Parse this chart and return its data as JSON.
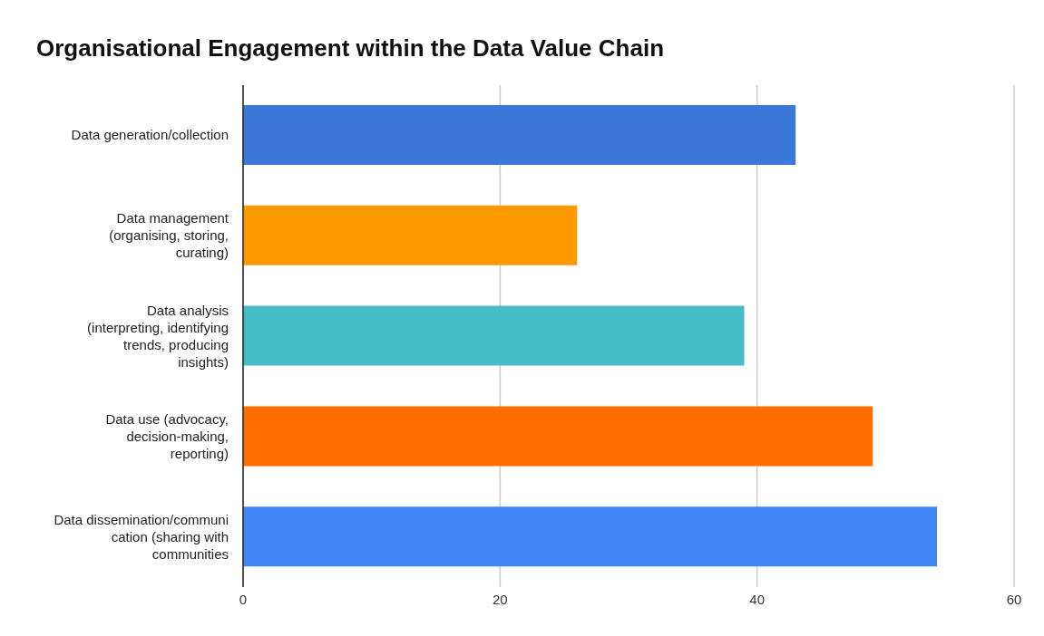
{
  "chart_data": {
    "type": "bar",
    "orientation": "horizontal",
    "title": "Organisational Engagement within the Data Value Chain",
    "categories": [
      "Data generation/collection",
      "Data management (organising, storing, curating)",
      "Data analysis (interpreting, identifying trends, producing insights)",
      "Data use (advocacy, decision-making, reporting)",
      "Data dissemination/communication (sharing with communities"
    ],
    "values": [
      43,
      26,
      39,
      49,
      54
    ],
    "colors": [
      "#3c78d8",
      "#ff9900",
      "#46bdc6",
      "#ff6d01",
      "#4285f4"
    ],
    "xlim": [
      0,
      60
    ],
    "xticks": [
      0,
      20,
      40,
      60
    ],
    "grid": "x"
  }
}
